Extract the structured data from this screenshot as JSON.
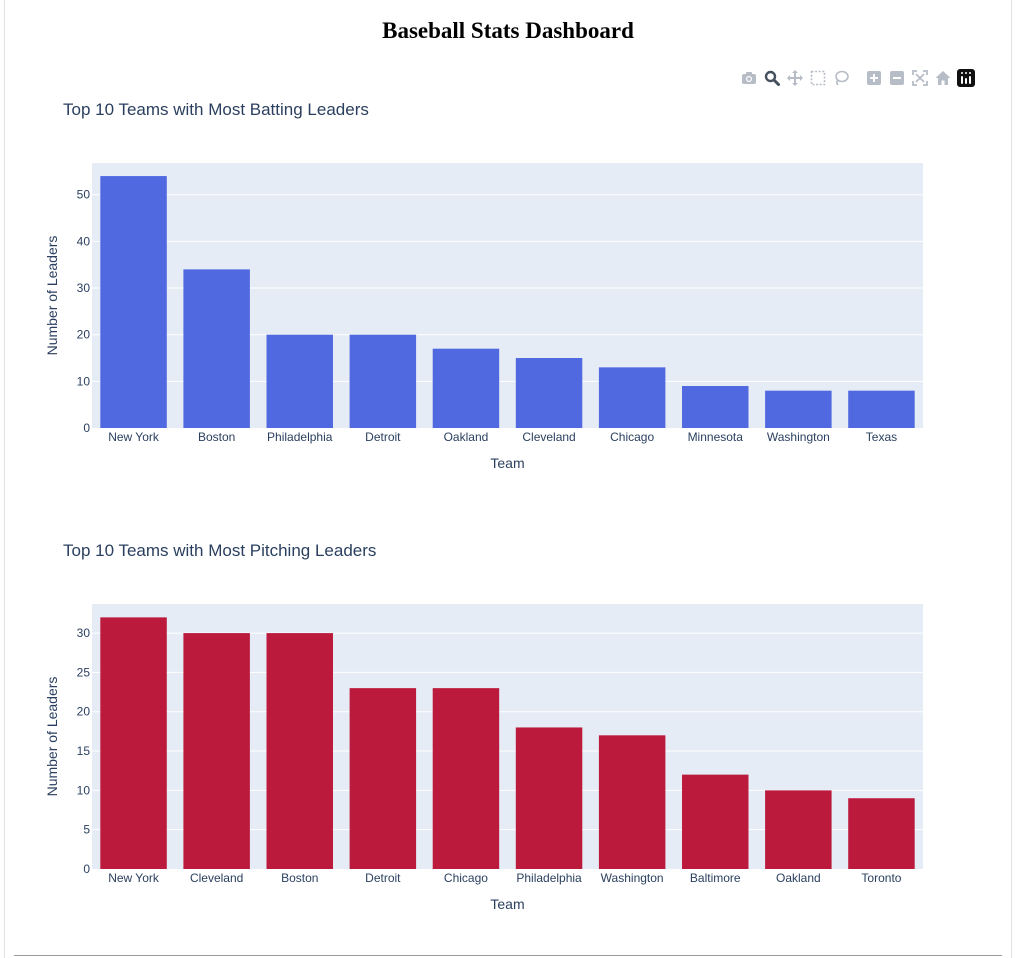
{
  "page": {
    "title": "Baseball Stats Dashboard"
  },
  "modebar": [
    {
      "name": "camera-icon",
      "title": "Download plot as a png"
    },
    {
      "name": "zoom-icon",
      "title": "Zoom"
    },
    {
      "name": "pan-icon",
      "title": "Pan"
    },
    {
      "name": "box-select-icon",
      "title": "Box Select"
    },
    {
      "name": "lasso-select-icon",
      "title": "Lasso Select"
    },
    {
      "name": "zoom-in-icon",
      "title": "Zoom in"
    },
    {
      "name": "zoom-out-icon",
      "title": "Zoom out"
    },
    {
      "name": "autoscale-icon",
      "title": "Autoscale"
    },
    {
      "name": "reset-axes-icon",
      "title": "Reset axes"
    },
    {
      "name": "plotly-logo-icon",
      "title": "Produced with Plotly"
    }
  ],
  "chart_data": [
    {
      "type": "bar",
      "title": "Top 10 Teams with Most Batting Leaders",
      "xlabel": "Team",
      "ylabel": "Number of Leaders",
      "categories": [
        "New York",
        "Boston",
        "Philadelphia",
        "Detroit",
        "Oakland",
        "Cleveland",
        "Chicago",
        "Minnesota",
        "Washington",
        "Texas"
      ],
      "values": [
        54,
        34,
        20,
        20,
        17,
        15,
        13,
        9,
        8,
        8
      ],
      "ylim": [
        0,
        56.8
      ],
      "yticks": [
        0,
        10,
        20,
        30,
        40,
        50
      ],
      "color": "#5069e0",
      "plot_bg": "#e5ecf6",
      "grid": true,
      "legend": "none"
    },
    {
      "type": "bar",
      "title": "Top 10 Teams with Most Pitching Leaders",
      "xlabel": "Team",
      "ylabel": "Number of Leaders",
      "categories": [
        "New York",
        "Cleveland",
        "Boston",
        "Detroit",
        "Chicago",
        "Philadelphia",
        "Washington",
        "Baltimore",
        "Oakland",
        "Toronto"
      ],
      "values": [
        32,
        30,
        30,
        23,
        23,
        18,
        17,
        12,
        10,
        9
      ],
      "ylim": [
        0,
        33.7
      ],
      "yticks": [
        0,
        5,
        10,
        15,
        20,
        25,
        30
      ],
      "color": "#bc1a3d",
      "plot_bg": "#e5ecf6",
      "grid": true,
      "legend": "none"
    }
  ]
}
